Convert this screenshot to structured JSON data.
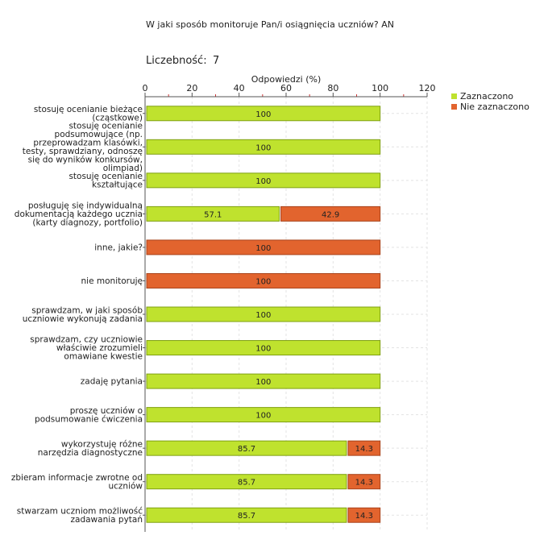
{
  "chart_data": {
    "type": "bar",
    "orientation": "horizontal",
    "stacked": true,
    "title": "W jaki sposób monitoruje Pan/i osiągnięcia uczniów?  AN",
    "count_label": "Liczebność:",
    "count_value": "7",
    "xlabel": "Odpowiedzi (%)",
    "xlim": [
      0,
      120
    ],
    "xticks": [
      "0",
      "20",
      "40",
      "60",
      "80",
      "100",
      "120"
    ],
    "legend_position": "top-right",
    "categories": [
      [
        "stosuję ocenianie bieżące",
        "(cząstkowe)"
      ],
      [
        "stosuję ocenianie",
        "podsumowujące (np.",
        "przeprowadzam klasówki,",
        "testy, sprawdziany, odnoszę",
        "się do wyników konkursów,",
        "olimpiad)"
      ],
      [
        "stosuję ocenianie",
        "kształtujące"
      ],
      [
        "posługuję się indywidualną",
        "dokumentacją każdego ucznia",
        "(karty diagnozy, portfolio)"
      ],
      [
        "inne, jakie?"
      ],
      [
        "nie monitoruję"
      ],
      [
        "sprawdzam, w jaki sposób",
        "uczniowie wykonują zadania"
      ],
      [
        "sprawdzam, czy uczniowie",
        "właściwie zrozumieli",
        "omawiane kwestie"
      ],
      [
        "zadaję pytania"
      ],
      [
        "proszę uczniów o",
        "podsumowanie ćwiczenia"
      ],
      [
        "wykorzystuję różne",
        "narzędzia diagnostyczne"
      ],
      [
        "zbieram informacje zwrotne od",
        "uczniów"
      ],
      [
        "stwarzam uczniom możliwość",
        "zadawania pytań"
      ]
    ],
    "series": [
      {
        "name": "Zaznaczono",
        "color": "#bfe22e",
        "values": [
          100,
          100,
          100,
          57.1,
          0,
          0,
          100,
          100,
          100,
          100,
          85.7,
          85.7,
          85.7
        ],
        "labels": [
          "100",
          "100",
          "100",
          "57.1",
          "",
          "",
          "100",
          "100",
          "100",
          "100",
          "85.7",
          "85.7",
          "85.7"
        ]
      },
      {
        "name": "Nie zaznaczono",
        "color": "#e2642e",
        "values": [
          0,
          0,
          0,
          42.9,
          100,
          100,
          0,
          0,
          0,
          0,
          14.3,
          14.3,
          14.3
        ],
        "labels": [
          "",
          "",
          "",
          "42.9",
          "100",
          "100",
          "",
          "",
          "",
          "",
          "14.3",
          "14.3",
          "14.3"
        ]
      }
    ]
  }
}
